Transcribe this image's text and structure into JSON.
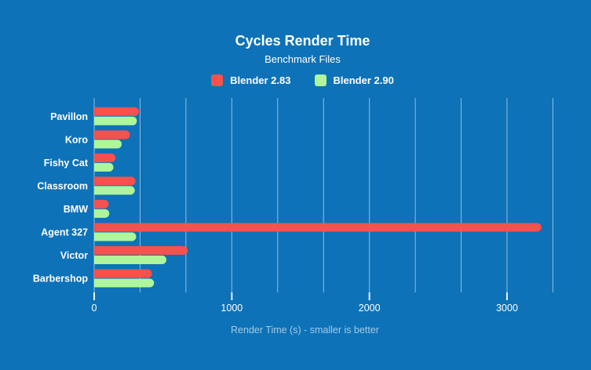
{
  "chart_data": {
    "type": "bar",
    "orientation": "horizontal",
    "title": "Cycles Render Time",
    "subtitle": "Benchmark Files",
    "xlabel": "Render Time (s) - smaller is better",
    "ylabel": "",
    "categories": [
      "Pavillon",
      "Koro",
      "Fishy Cat",
      "Classroom",
      "BMW",
      "Agent 327",
      "Victor",
      "Barbershop"
    ],
    "series": [
      {
        "name": "Blender 2.83",
        "color": "#f4514f",
        "values": [
          325,
          260,
          155,
          300,
          105,
          3250,
          680,
          420
        ]
      },
      {
        "name": "Blender 2.90",
        "color": "#aef59c",
        "values": [
          310,
          200,
          140,
          295,
          110,
          305,
          525,
          435
        ]
      }
    ],
    "xlim": [
      0,
      3333
    ],
    "x_ticks": [
      {
        "value": 0,
        "label": "0"
      },
      {
        "value": 1000,
        "label": "1000"
      },
      {
        "value": 2000,
        "label": "2000"
      },
      {
        "value": 3000,
        "label": "3000"
      }
    ],
    "x_minor_step": 333.333,
    "grid": true,
    "legend_position": "top",
    "units": "seconds",
    "note": "smaller is better"
  },
  "colors": {
    "background": "#0d72b8",
    "gridline": "#ffffff",
    "tick_text": "#ffffff",
    "axis_title_text": "#b9d6ec"
  }
}
